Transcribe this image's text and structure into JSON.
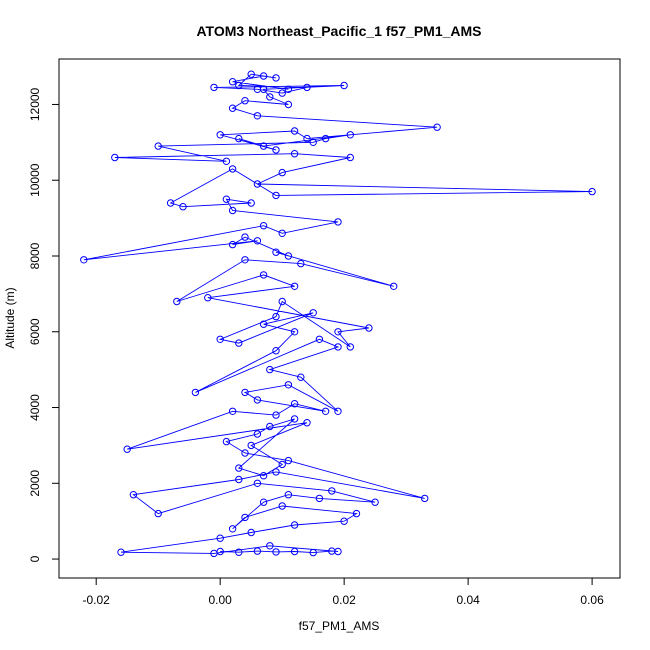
{
  "chart_data": {
    "type": "scatter",
    "title": "ATOM3 Northeast_Pacific_1 f57_PM1_AMS",
    "xlabel": "f57_PM1_AMS",
    "ylabel": "Altitude (m)",
    "xlim": [
      -0.026,
      0.0645
    ],
    "ylim": [
      -500,
      13200
    ],
    "x_ticks": [
      -0.02,
      0.0,
      0.02,
      0.04,
      0.06
    ],
    "x_tick_labels": [
      "-0.02",
      "0.00",
      "0.02",
      "0.04",
      "0.06"
    ],
    "y_ticks": [
      0,
      2000,
      4000,
      6000,
      8000,
      10000,
      12000
    ],
    "y_tick_labels": [
      "0",
      "2000",
      "4000",
      "6000",
      "8000",
      "10000",
      "12000"
    ],
    "series_color": "#0000ff",
    "markers": "open-circle-with-connecting-line",
    "series": [
      {
        "x": [
          0.0,
          0.003,
          0.006,
          0.009,
          0.012,
          0.015,
          0.018,
          0.019,
          0.008,
          -0.001,
          -0.016,
          0.0,
          0.005,
          0.012,
          0.02,
          0.022,
          0.01,
          0.004,
          0.002,
          0.007,
          0.011,
          0.016,
          0.025,
          0.018,
          0.006,
          -0.01,
          -0.014,
          0.003,
          0.009,
          0.033,
          0.011,
          0.004,
          0.001,
          0.006,
          0.008,
          0.012,
          0.003,
          0.007,
          0.01,
          0.005,
          0.014,
          -0.015,
          0.002,
          0.009,
          0.012,
          0.017,
          0.006,
          0.004,
          0.011,
          0.019,
          0.013,
          0.008,
          0.019,
          0.016,
          -0.004,
          0.009,
          0.012,
          0.007,
          0.015,
          0.003,
          0.0,
          0.009,
          0.01,
          0.021,
          0.019,
          0.024,
          -0.002,
          0.012,
          0.007,
          -0.007,
          0.004,
          0.013,
          0.028,
          0.009,
          0.011,
          0.004,
          0.002,
          0.006,
          -0.022,
          0.007,
          0.01,
          0.019,
          0.002,
          0.001,
          0.005,
          -0.006,
          -0.008,
          0.002,
          0.009,
          0.06,
          0.006,
          0.01,
          0.021,
          0.012,
          -0.017,
          0.001,
          -0.01,
          0.015,
          0.017,
          0.021,
          0.007,
          0.003,
          0.009,
          0.0,
          0.012,
          0.014,
          0.035,
          0.006,
          0.002,
          0.004,
          0.011,
          0.008,
          0.007,
          0.02,
          -0.001,
          0.006,
          0.01,
          0.014,
          0.003,
          0.005,
          0.009,
          0.007,
          0.002,
          0.011
        ],
        "y": [
          200,
          180,
          210,
          190,
          200,
          170,
          210,
          200,
          350,
          150,
          180,
          550,
          700,
          900,
          1000,
          1200,
          1400,
          1100,
          800,
          1500,
          1700,
          1600,
          1500,
          1800,
          2000,
          1200,
          1700,
          2100,
          2300,
          1600,
          2600,
          2800,
          3100,
          3300,
          3500,
          3700,
          2400,
          2200,
          2500,
          3000,
          3600,
          2900,
          3900,
          3800,
          4100,
          3900,
          4200,
          4400,
          4600,
          3900,
          4800,
          5000,
          5600,
          5800,
          4400,
          5500,
          6000,
          6200,
          6500,
          5700,
          5800,
          6400,
          6800,
          5600,
          6000,
          6100,
          6900,
          7200,
          7500,
          6800,
          7900,
          7800,
          7200,
          8100,
          8000,
          8500,
          8300,
          8400,
          7900,
          8800,
          8600,
          8900,
          9200,
          9500,
          9400,
          9300,
          9400,
          10300,
          9600,
          9700,
          9900,
          10200,
          10600,
          10700,
          10600,
          10500,
          10900,
          11000,
          11100,
          11200,
          10900,
          11100,
          10800,
          11200,
          11300,
          11100,
          11400,
          11700,
          11900,
          12100,
          12000,
          12200,
          12400,
          12500,
          12450,
          12400,
          12300,
          12450,
          12500,
          12800,
          12700,
          12750,
          12600,
          12400
        ]
      }
    ]
  }
}
